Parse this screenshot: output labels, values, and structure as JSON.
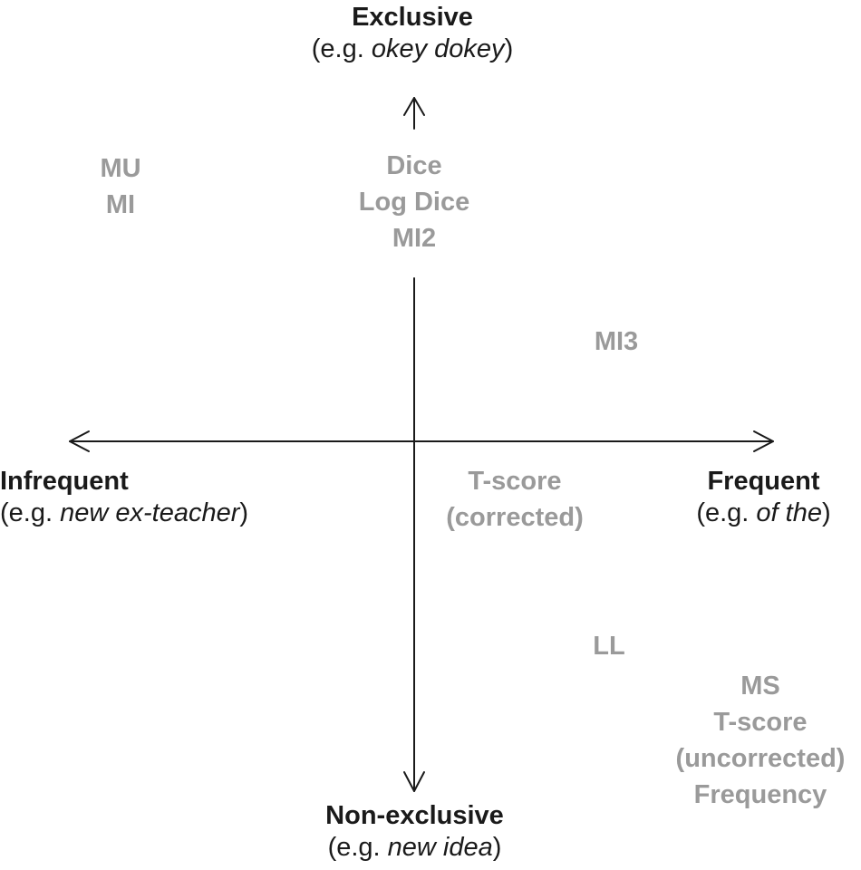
{
  "colors": {
    "axis": "#1a1a1a",
    "pole_text": "#1a1a1a",
    "measure_text": "#9a9a9a"
  },
  "poles": {
    "top": {
      "title": "Exclusive",
      "example_prefix": "(e.g. ",
      "example": "okey dokey",
      "example_suffix": ")"
    },
    "bottom": {
      "title": "Non-exclusive",
      "example_prefix": "(e.g. ",
      "example": "new idea",
      "example_suffix": ")"
    },
    "left": {
      "title": "Infrequent",
      "example_prefix": "(e.g. ",
      "example": "new ex-teacher",
      "example_suffix": ")"
    },
    "right": {
      "title": "Frequent",
      "example_prefix": "(e.g. ",
      "example": "of the",
      "example_suffix": ")"
    }
  },
  "measures": {
    "top_left": [
      "MU",
      "MI"
    ],
    "top_center": [
      "Dice",
      "Log Dice",
      "MI2"
    ],
    "upper_right": [
      "MI3"
    ],
    "center_right": [
      "T-score",
      "(corrected)"
    ],
    "lower_right": [
      "LL"
    ],
    "bottom_right": [
      "MS",
      "T-score",
      "(uncorrected)",
      "Frequency"
    ]
  }
}
